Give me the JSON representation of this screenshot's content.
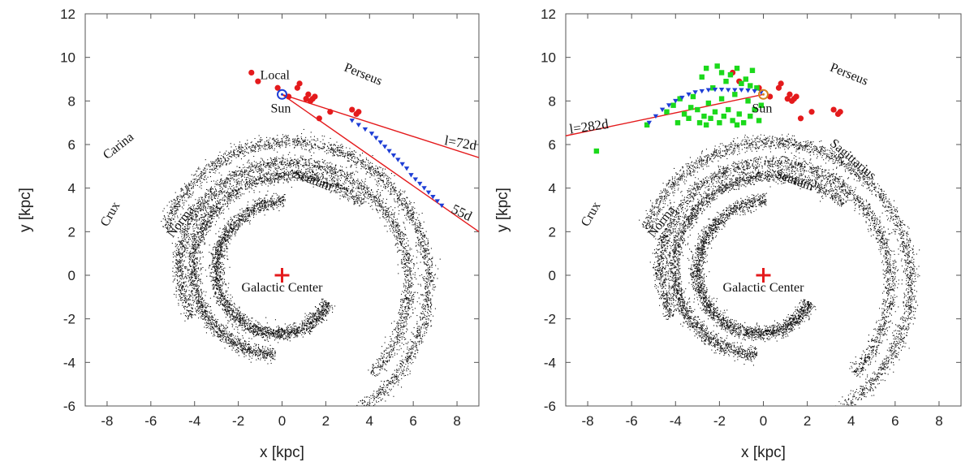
{
  "chart_data": [
    {
      "type": "scatter",
      "xlabel": "x [kpc]",
      "ylabel": "y [kpc]",
      "xlim": [
        -9,
        9
      ],
      "ylim": [
        -6,
        12
      ],
      "xticks": [
        -8,
        -6,
        -4,
        -2,
        0,
        2,
        4,
        6,
        8
      ],
      "yticks": [
        -6,
        -4,
        -2,
        0,
        2,
        4,
        6,
        8,
        10,
        12
      ],
      "arm_labels": [
        {
          "text": "Local",
          "x": -1.0,
          "y": 9.0,
          "rotate": 0
        },
        {
          "text": "Perseus",
          "x": 2.8,
          "y": 9.4,
          "rotate": 22
        },
        {
          "text": "Carina",
          "x": -8.0,
          "y": 5.3,
          "rotate": -38
        },
        {
          "text": "Scutum",
          "x": 0.5,
          "y": 4.5,
          "rotate": 20
        },
        {
          "text": "Crux",
          "x": -8.0,
          "y": 2.2,
          "rotate": -60
        },
        {
          "text": "Norma",
          "x": -5.0,
          "y": 1.7,
          "rotate": -52
        }
      ],
      "labels": {
        "sun": "Sun",
        "center": "Galactic Center",
        "l1": "l=72d",
        "l2": "55d"
      },
      "sun": {
        "x": 0,
        "y": 8.3,
        "marker_color": "#1f3fd6"
      },
      "galactic_center": {
        "x": 0,
        "y": 0,
        "color": "#e41a1c"
      },
      "sight_lines": [
        {
          "label": "l=72d",
          "from": [
            0,
            8.3
          ],
          "to": [
            9.0,
            5.4
          ]
        },
        {
          "label": "55d",
          "from": [
            0,
            8.3
          ],
          "to": [
            9.0,
            2.0
          ]
        }
      ],
      "red_points": [
        [
          -1.4,
          9.3
        ],
        [
          -1.1,
          8.9
        ],
        [
          -0.2,
          8.6
        ],
        [
          0.3,
          8.2
        ],
        [
          0.7,
          8.6
        ],
        [
          0.8,
          8.8
        ],
        [
          1.1,
          8.1
        ],
        [
          1.2,
          8.3
        ],
        [
          1.3,
          8.0
        ],
        [
          1.4,
          8.1
        ],
        [
          1.5,
          8.2
        ],
        [
          1.7,
          7.2
        ],
        [
          2.2,
          7.5
        ],
        [
          3.2,
          7.6
        ],
        [
          3.4,
          7.4
        ],
        [
          3.5,
          7.5
        ]
      ],
      "blue_triangles": [
        [
          3.2,
          7.1
        ],
        [
          3.5,
          6.9
        ],
        [
          3.8,
          6.7
        ],
        [
          4.1,
          6.5
        ],
        [
          4.3,
          6.3
        ],
        [
          4.5,
          6.1
        ],
        [
          4.7,
          5.9
        ],
        [
          4.9,
          5.7
        ],
        [
          5.1,
          5.5
        ],
        [
          5.3,
          5.3
        ],
        [
          5.5,
          5.1
        ],
        [
          5.7,
          4.9
        ],
        [
          5.9,
          4.6
        ],
        [
          6.1,
          4.4
        ],
        [
          6.3,
          4.2
        ],
        [
          6.5,
          4.0
        ],
        [
          6.7,
          3.8
        ],
        [
          6.9,
          3.6
        ],
        [
          7.1,
          3.4
        ],
        [
          7.3,
          3.2
        ]
      ],
      "colors": {
        "red": "#e41a1c",
        "blue": "#1f3fd6",
        "line": "#e41a1c",
        "dots": "#111111"
      }
    },
    {
      "type": "scatter",
      "xlabel": "x [kpc]",
      "ylabel": "y [kpc]",
      "xlim": [
        -9,
        9
      ],
      "ylim": [
        -6,
        12
      ],
      "xticks": [
        -8,
        -6,
        -4,
        -2,
        0,
        2,
        4,
        6,
        8
      ],
      "yticks": [
        -6,
        -4,
        -2,
        0,
        2,
        4,
        6,
        8,
        10,
        12
      ],
      "arm_labels": [
        {
          "text": "Perseus",
          "x": 3.0,
          "y": 9.4,
          "rotate": 22
        },
        {
          "text": "Sagittarius",
          "x": 3.0,
          "y": 6.0,
          "rotate": 40
        },
        {
          "text": "Scutum",
          "x": 0.5,
          "y": 4.5,
          "rotate": 20
        },
        {
          "text": "Crux",
          "x": -8.0,
          "y": 2.2,
          "rotate": -60
        },
        {
          "text": "Norma",
          "x": -5.0,
          "y": 1.7,
          "rotate": -52
        }
      ],
      "labels": {
        "sun": "Sun",
        "center": "Galactic Center",
        "l1": "l=282d"
      },
      "sun": {
        "x": 0,
        "y": 8.3,
        "marker_color": "#d6841f"
      },
      "galactic_center": {
        "x": 0,
        "y": 0,
        "color": "#e41a1c"
      },
      "sight_lines": [
        {
          "label": "l=282d",
          "from": [
            0,
            8.3
          ],
          "to": [
            -9.0,
            6.4
          ]
        }
      ],
      "red_points": [
        [
          -1.4,
          9.3
        ],
        [
          -1.1,
          8.9
        ],
        [
          -0.2,
          8.6
        ],
        [
          0.3,
          8.2
        ],
        [
          0.7,
          8.6
        ],
        [
          0.8,
          8.8
        ],
        [
          1.1,
          8.1
        ],
        [
          1.2,
          8.3
        ],
        [
          1.3,
          8.0
        ],
        [
          1.4,
          8.1
        ],
        [
          1.5,
          8.2
        ],
        [
          1.7,
          7.2
        ],
        [
          2.2,
          7.5
        ],
        [
          3.2,
          7.6
        ],
        [
          3.4,
          7.4
        ],
        [
          3.5,
          7.5
        ]
      ],
      "blue_triangles": [
        [
          -5.2,
          7.0
        ],
        [
          -4.9,
          7.3
        ],
        [
          -4.6,
          7.6
        ],
        [
          -4.3,
          7.8
        ],
        [
          -4.0,
          8.0
        ],
        [
          -3.7,
          8.15
        ],
        [
          -3.4,
          8.3
        ],
        [
          -3.1,
          8.4
        ],
        [
          -2.8,
          8.45
        ],
        [
          -2.5,
          8.5
        ],
        [
          -2.2,
          8.52
        ],
        [
          -1.9,
          8.52
        ],
        [
          -1.6,
          8.5
        ],
        [
          -1.3,
          8.5
        ],
        [
          -1.0,
          8.5
        ],
        [
          -0.7,
          8.48
        ],
        [
          -0.4,
          8.45
        ],
        [
          -0.1,
          8.4
        ]
      ],
      "green_squares": [
        [
          -7.6,
          5.7
        ],
        [
          -5.3,
          6.9
        ],
        [
          -4.4,
          7.5
        ],
        [
          -4.1,
          7.8
        ],
        [
          -3.8,
          8.1
        ],
        [
          -3.6,
          7.4
        ],
        [
          -3.4,
          7.2
        ],
        [
          -3.2,
          8.2
        ],
        [
          -3.0,
          7.6
        ],
        [
          -2.9,
          7.0
        ],
        [
          -2.8,
          9.1
        ],
        [
          -2.7,
          7.3
        ],
        [
          -2.6,
          9.5
        ],
        [
          -2.5,
          7.9
        ],
        [
          -2.4,
          7.2
        ],
        [
          -2.3,
          8.6
        ],
        [
          -2.2,
          7.5
        ],
        [
          -2.1,
          9.6
        ],
        [
          -2.0,
          7.0
        ],
        [
          -1.9,
          8.1
        ],
        [
          -1.8,
          7.3
        ],
        [
          -1.7,
          8.9
        ],
        [
          -1.6,
          7.6
        ],
        [
          -1.5,
          9.2
        ],
        [
          -1.4,
          7.1
        ],
        [
          -1.3,
          8.3
        ],
        [
          -1.2,
          9.5
        ],
        [
          -1.1,
          7.4
        ],
        [
          -1.0,
          8.8
        ],
        [
          -0.9,
          7.0
        ],
        [
          -0.8,
          9.0
        ],
        [
          -0.7,
          8.0
        ],
        [
          -0.6,
          7.3
        ],
        [
          -0.5,
          9.4
        ],
        [
          -0.4,
          7.6
        ],
        [
          -0.3,
          8.6
        ],
        [
          -0.2,
          7.1
        ],
        [
          -0.1,
          7.8
        ],
        [
          -3.9,
          7.0
        ],
        [
          -3.3,
          7.7
        ],
        [
          -2.6,
          6.9
        ],
        [
          -1.9,
          9.3
        ],
        [
          -1.2,
          6.9
        ],
        [
          -0.6,
          8.7
        ]
      ],
      "colors": {
        "red": "#e41a1c",
        "blue": "#1f3fd6",
        "green": "#1bd91b",
        "line": "#e41a1c",
        "dots": "#111111"
      }
    }
  ]
}
